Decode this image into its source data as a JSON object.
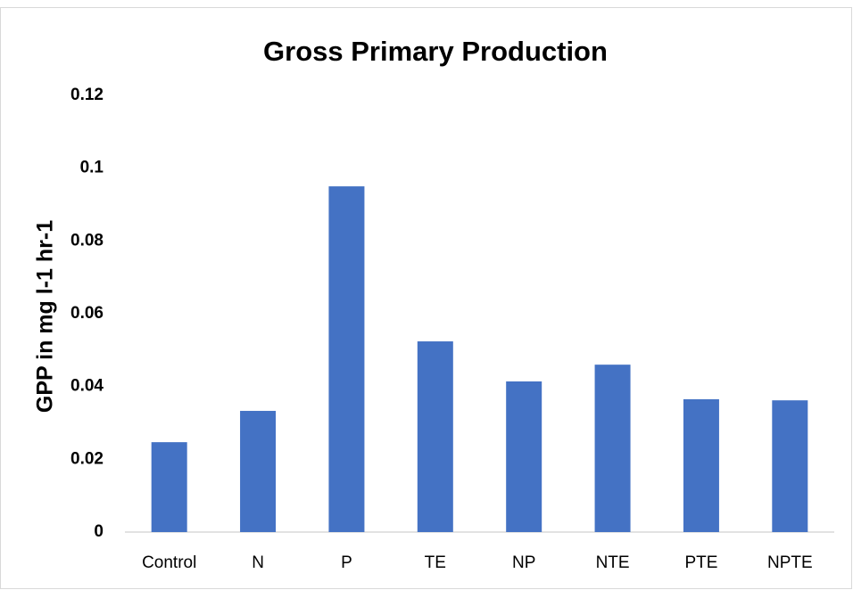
{
  "chart_data": {
    "type": "bar",
    "title": "Gross Primary Production",
    "y_label": "GPP in mg l-1 hr-1",
    "categories": [
      "Control",
      "N",
      "P",
      "TE",
      "NP",
      "NTE",
      "PTE",
      "NPTE"
    ],
    "values": [
      0.0247,
      0.0333,
      0.095,
      0.0524,
      0.0414,
      0.046,
      0.0365,
      0.0362
    ],
    "color": "#4472c4",
    "ylim": [
      0,
      0.12
    ],
    "yticks": [
      0,
      0.02,
      0.04,
      0.06,
      0.08,
      0.1,
      0.12
    ],
    "grid": false
  }
}
